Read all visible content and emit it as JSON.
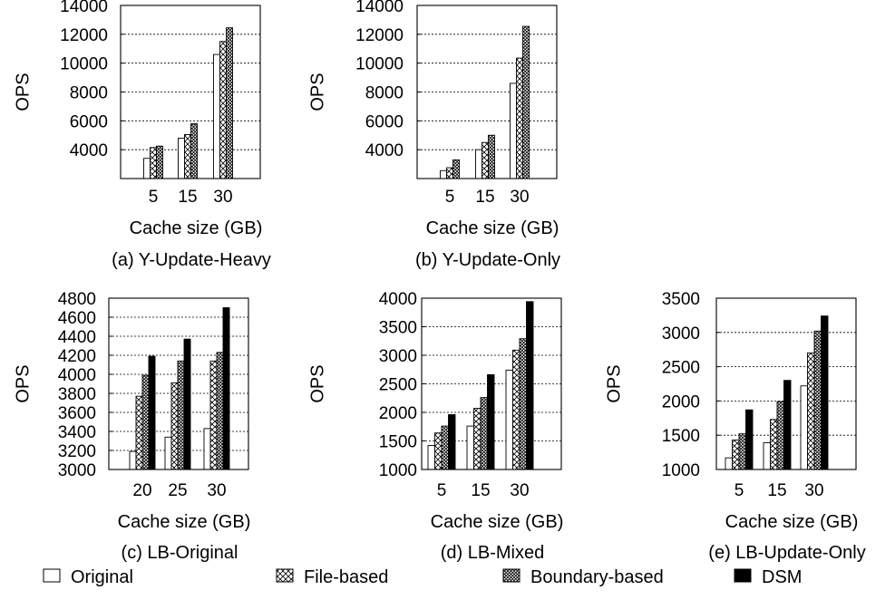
{
  "legend": [
    {
      "name": "Original",
      "pattern": "white"
    },
    {
      "name": "File-based",
      "pattern": "hatch-sparse"
    },
    {
      "name": "Boundary-based",
      "pattern": "hatch-dense"
    },
    {
      "name": "DSM",
      "pattern": "black"
    }
  ],
  "chart_data": [
    {
      "type": "bar",
      "caption": "(a) Y-Update-Heavy",
      "xlabel": "Cache size (GB)",
      "ylabel": "OPS",
      "categories": [
        "5",
        "15",
        "30"
      ],
      "ylim": [
        2000,
        14000
      ],
      "yticks": [
        4000,
        6000,
        8000,
        10000,
        12000,
        14000
      ],
      "grid": true,
      "series": [
        {
          "name": "Original",
          "values": [
            3400,
            4800,
            10600
          ]
        },
        {
          "name": "File-based",
          "values": [
            4150,
            5050,
            11500
          ]
        },
        {
          "name": "Boundary-based",
          "values": [
            4250,
            5800,
            12450
          ]
        }
      ]
    },
    {
      "type": "bar",
      "caption": "(b) Y-Update-Only",
      "xlabel": "Cache size (GB)",
      "ylabel": "OPS",
      "categories": [
        "5",
        "15",
        "30"
      ],
      "ylim": [
        2000,
        14000
      ],
      "yticks": [
        4000,
        6000,
        8000,
        10000,
        12000,
        14000
      ],
      "grid": true,
      "series": [
        {
          "name": "Original",
          "values": [
            2550,
            4000,
            8600
          ]
        },
        {
          "name": "File-based",
          "values": [
            2750,
            4500,
            10350
          ]
        },
        {
          "name": "Boundary-based",
          "values": [
            3300,
            5000,
            12550
          ]
        }
      ]
    },
    {
      "type": "bar",
      "caption": "(c) LB-Original",
      "xlabel": "Cache size (GB)",
      "ylabel": "OPS",
      "categories": [
        "20",
        "25",
        "30"
      ],
      "ylim": [
        3000,
        4800
      ],
      "yticks": [
        3000,
        3200,
        3400,
        3600,
        3800,
        4000,
        4200,
        4400,
        4600,
        4800
      ],
      "grid": true,
      "series": [
        {
          "name": "Original",
          "values": [
            3190,
            3340,
            3430
          ]
        },
        {
          "name": "File-based",
          "values": [
            3770,
            3910,
            4140
          ]
        },
        {
          "name": "Boundary-based",
          "values": [
            3990,
            4140,
            4230
          ]
        },
        {
          "name": "DSM",
          "values": [
            4190,
            4370,
            4700
          ]
        }
      ]
    },
    {
      "type": "bar",
      "caption": "(d) LB-Mixed",
      "xlabel": "Cache size (GB)",
      "ylabel": "OPS",
      "categories": [
        "5",
        "15",
        "30"
      ],
      "ylim": [
        1000,
        4000
      ],
      "yticks": [
        1000,
        1500,
        2000,
        2500,
        3000,
        3500,
        4000
      ],
      "grid": true,
      "series": [
        {
          "name": "Original",
          "values": [
            1420,
            1760,
            2740
          ]
        },
        {
          "name": "File-based",
          "values": [
            1640,
            2070,
            3090
          ]
        },
        {
          "name": "Boundary-based",
          "values": [
            1760,
            2260,
            3290
          ]
        },
        {
          "name": "DSM",
          "values": [
            1960,
            2660,
            3940
          ]
        }
      ]
    },
    {
      "type": "bar",
      "caption": "(e) LB-Update-Only",
      "xlabel": "Cache size (GB)",
      "ylabel": "OPS",
      "categories": [
        "5",
        "15",
        "30"
      ],
      "ylim": [
        1000,
        3500
      ],
      "yticks": [
        1000,
        1500,
        2000,
        2500,
        3000,
        3500
      ],
      "grid": true,
      "series": [
        {
          "name": "Original",
          "values": [
            1170,
            1390,
            2220
          ]
        },
        {
          "name": "File-based",
          "values": [
            1430,
            1730,
            2700
          ]
        },
        {
          "name": "Boundary-based",
          "values": [
            1520,
            1990,
            3020
          ]
        },
        {
          "name": "DSM",
          "values": [
            1870,
            2300,
            3240
          ]
        }
      ]
    }
  ]
}
